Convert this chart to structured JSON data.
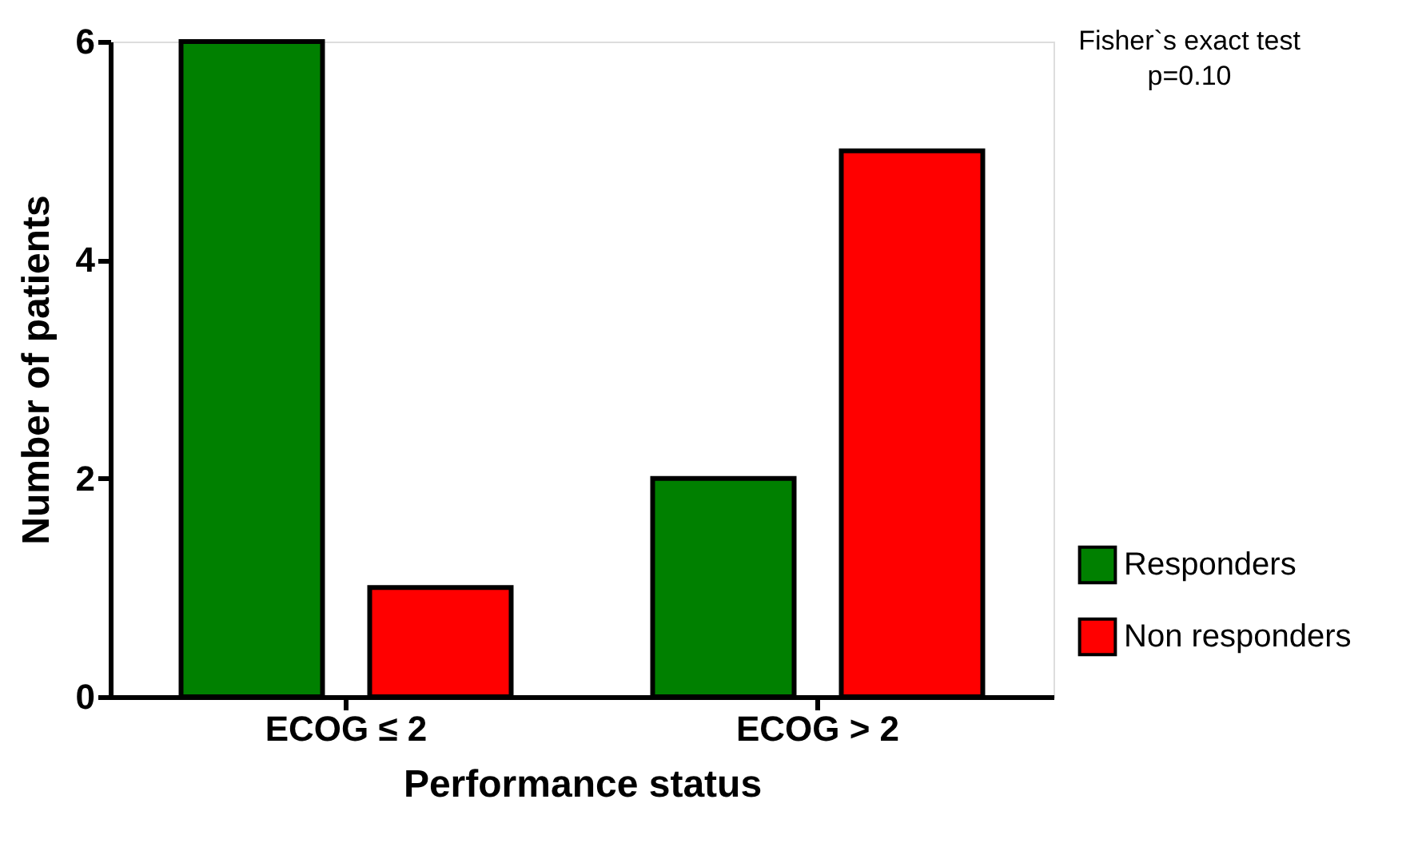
{
  "chart_data": {
    "type": "bar",
    "xlabel": "Performance status",
    "ylabel": "Number of patients",
    "categories": [
      "ECOG ≤ 2",
      "ECOG > 2"
    ],
    "series": [
      {
        "name": "Responders",
        "color": "#008000",
        "values": [
          6,
          2
        ]
      },
      {
        "name": "Non responders",
        "color": "#ff0000",
        "values": [
          1,
          5
        ]
      }
    ],
    "ylim": [
      0,
      6
    ],
    "yticks": [
      0,
      2,
      4,
      6
    ],
    "grid": false,
    "legend": "right",
    "annotations": [
      "Fisher`s exact test",
      "p=0.10"
    ]
  }
}
